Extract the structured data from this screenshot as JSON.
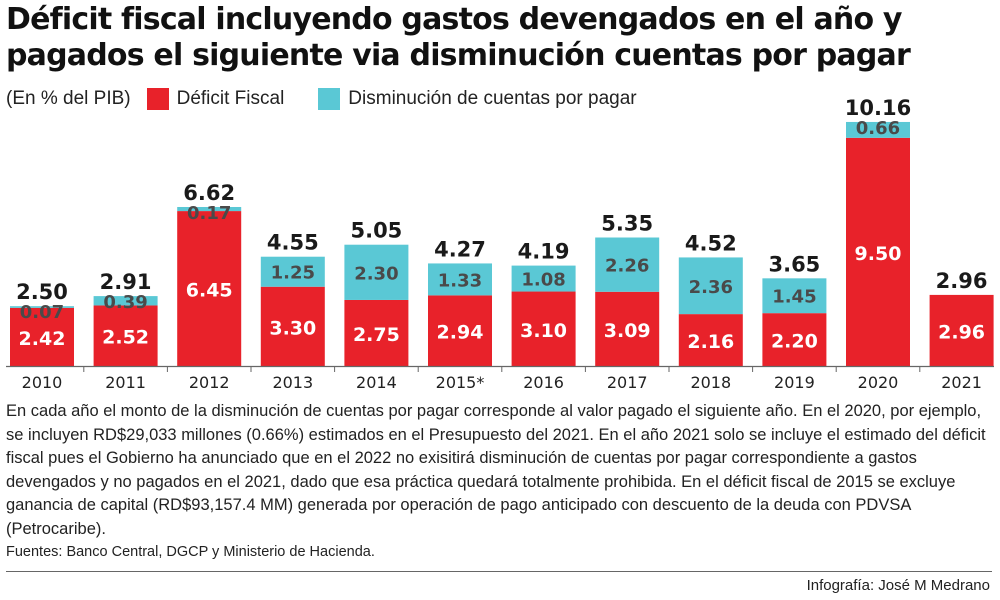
{
  "title": "Déficit fiscal incluyendo gastos devengados en el año y pagados el siguiente via disminución cuentas por pagar",
  "unit_label": "(En % del PIB)",
  "legend": {
    "deficit": "Déficit Fiscal",
    "cuentas": "Disminución de cuentas por pagar"
  },
  "colors": {
    "deficit": "#e8222a",
    "cuentas": "#5ac8d5",
    "axis": "#666666"
  },
  "chart_data": {
    "type": "bar",
    "stacked": true,
    "categories": [
      "2010",
      "2011",
      "2012",
      "2013",
      "2014",
      "2015*",
      "2016",
      "2017",
      "2018",
      "2019",
      "2020",
      "2021"
    ],
    "series": [
      {
        "name": "Déficit Fiscal",
        "values": [
          2.42,
          2.52,
          6.45,
          3.3,
          2.75,
          2.94,
          3.1,
          3.09,
          2.16,
          2.2,
          9.5,
          2.96
        ]
      },
      {
        "name": "Disminución de cuentas por pagar",
        "values": [
          0.07,
          0.39,
          0.17,
          1.25,
          2.3,
          1.33,
          1.08,
          2.26,
          2.36,
          1.45,
          0.66,
          null
        ]
      }
    ],
    "totals": [
      2.5,
      2.91,
      6.62,
      4.55,
      5.05,
      4.27,
      4.19,
      5.35,
      4.52,
      3.65,
      10.16,
      2.96
    ],
    "ylim": [
      0,
      10.2
    ],
    "grid": false,
    "legend_position": "top-left"
  },
  "note": "En cada año el monto de la disminución de cuentas por pagar corresponde al valor pagado el siguiente año. En el 2020, por ejemplo, se incluyen RD$29,033 millones (0.66%)  estimados en el Presupuesto del 2021. En el año 2021 solo se incluye el estimado del déficit fiscal pues el Gobierno ha anunciado que en el 2022 no exisitirá disminución de cuentas por pagar correspondiente a gastos devengados y no pagados en el 2021, dado que esa práctica quedará totalmente prohibida. En el déficit fiscal de 2015 se excluye ganancia de capital (RD$93,157.4 MM) generada por operación de pago anticipado con descuento de la deuda con PDVSA (Petrocaribe).",
  "sources": "Fuentes: Banco Central, DGCP y Ministerio de Hacienda.",
  "credit": "Infografía: José M  Medrano"
}
